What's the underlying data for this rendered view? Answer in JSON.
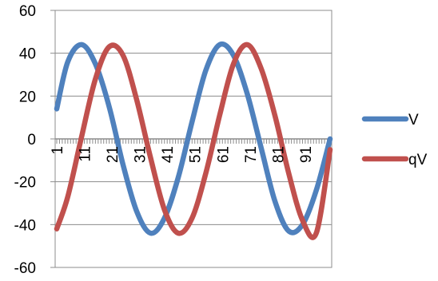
{
  "chart_data": {
    "type": "line",
    "title": "",
    "xlabel": "",
    "ylabel": "",
    "ylim": [
      -60,
      60
    ],
    "yticks": [
      -60,
      -40,
      -20,
      0,
      20,
      40,
      60
    ],
    "xlim": [
      1,
      100
    ],
    "xtick_labels": [
      "1",
      "11",
      "21",
      "31",
      "41",
      "51",
      "61",
      "71",
      "81",
      "91"
    ],
    "grid": "horizontal",
    "legend_position": "right",
    "series": [
      {
        "name": "V",
        "color": "#4F81BD",
        "x": [
          1,
          5,
          10,
          15,
          20,
          25,
          30,
          35,
          40,
          45,
          50,
          55,
          60,
          65,
          70,
          75,
          80,
          85,
          90,
          95,
          100
        ],
        "y": [
          14,
          36,
          44,
          35,
          15,
          -12,
          -34,
          -44,
          -37,
          -18,
          8,
          32,
          44,
          39,
          21,
          -4,
          -29,
          -43,
          -40,
          -24,
          0
        ]
      },
      {
        "name": "qV",
        "color": "#C0504D",
        "x": [
          1,
          5,
          10,
          15,
          20,
          25,
          30,
          35,
          40,
          45,
          50,
          55,
          60,
          65,
          70,
          75,
          80,
          85,
          90,
          95,
          100
        ],
        "y": [
          -42,
          -27,
          1,
          28,
          43,
          39,
          18,
          -9,
          -33,
          -44,
          -37,
          -16,
          11,
          35,
          44,
          33,
          11,
          -16,
          -38,
          -44,
          -5
        ]
      }
    ]
  }
}
